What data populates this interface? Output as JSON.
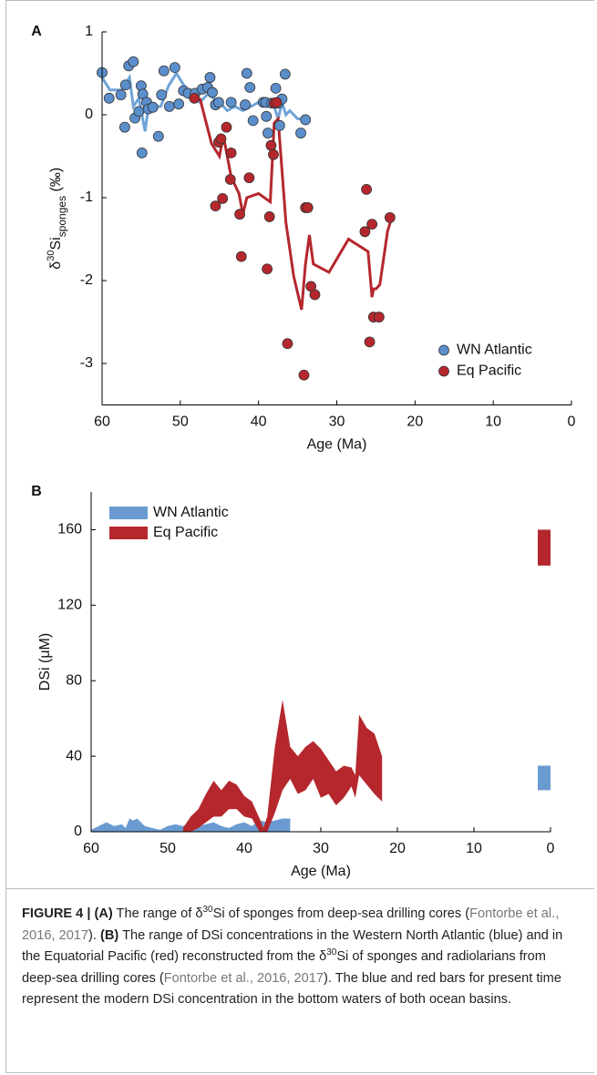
{
  "chart_data": [
    {
      "type": "scatter",
      "panel": "A",
      "y_label": [
        "δ",
        "30",
        "Si",
        "sponges",
        " (‰)"
      ],
      "x_label": "Age (Ma)",
      "xlim": [
        60,
        0
      ],
      "xticks": [
        60,
        50,
        40,
        30,
        20,
        10,
        0
      ],
      "ylim": [
        -3.5,
        1
      ],
      "yticks": [
        1,
        0,
        -1,
        -2,
        -3
      ],
      "legend": "lower right",
      "series": [
        {
          "name": "WN Atlantic",
          "color": "#5b8fcc",
          "line_color": "#6fa3d8",
          "x": [
            60,
            59.1,
            57.6,
            57.1,
            57,
            56.6,
            56,
            55.8,
            55.3,
            55,
            54.8,
            54.9,
            54.3,
            54.1,
            53.5,
            52.8,
            52.4,
            52.1,
            51.4,
            50.7,
            50.2,
            49.6,
            49,
            48.1,
            47.2,
            46.5,
            46.2,
            45.9,
            45.5,
            45.1,
            43.5,
            41.7,
            41.5,
            41.1,
            40.7,
            39.4,
            39.1,
            39,
            38.8,
            38.3,
            37.8,
            37.5,
            37.3,
            37,
            36.6,
            34.6,
            34
          ],
          "values": [
            0.51,
            0.2,
            0.24,
            -0.15,
            0.36,
            0.59,
            0.64,
            -0.04,
            0.04,
            0.35,
            0.25,
            -0.46,
            0.15,
            0.07,
            0.09,
            -0.26,
            0.24,
            0.53,
            0.1,
            0.57,
            0.13,
            0.29,
            0.26,
            0.26,
            0.31,
            0.33,
            0.45,
            0.27,
            0.12,
            0.15,
            0.15,
            0.12,
            0.5,
            0.33,
            -0.07,
            0.15,
            0.15,
            -0.02,
            -0.22,
            0.14,
            0.32,
            0.14,
            -0.13,
            0.19,
            0.49,
            -0.22,
            -0.06
          ],
          "line_x": [
            60,
            59,
            57.5,
            56.5,
            56,
            55.3,
            54.5,
            54,
            53.5,
            52.5,
            51.5,
            50.5,
            49.5,
            48.5,
            47.5,
            46.5,
            45,
            44,
            43,
            42,
            41,
            40,
            39,
            38,
            37.5,
            37,
            36.5,
            36,
            35,
            34
          ],
          "line_values": [
            0.45,
            0.3,
            0.3,
            0.45,
            0.1,
            0.2,
            -0.2,
            0.15,
            0.1,
            0.1,
            0.35,
            0.5,
            0.35,
            0.25,
            0.15,
            0.25,
            0.15,
            0.05,
            0.1,
            0.05,
            0.1,
            0.15,
            0.1,
            0.1,
            -0.05,
            0.15,
            0,
            0.05,
            -0.05,
            -0.05
          ]
        },
        {
          "name": "Eq Pacific",
          "color": "#b5272d",
          "line_color": "#b5272d",
          "x": [
            48.2,
            45.5,
            45.1,
            44.8,
            44.6,
            44.1,
            43.6,
            43.5,
            42.4,
            42.2,
            41.2,
            38.9,
            38.6,
            38.4,
            38.1,
            38,
            37.7,
            36.3,
            34.2,
            34,
            33.7,
            33.3,
            32.8,
            26.2,
            26.4,
            25.8,
            25.5,
            25.3,
            24.6,
            23.2
          ],
          "values": [
            0.2,
            -1.1,
            -0.33,
            -0.29,
            -1.01,
            -0.15,
            -0.78,
            -0.46,
            -1.2,
            -1.71,
            -0.76,
            -1.86,
            -1.23,
            -0.37,
            -0.48,
            0.14,
            0.15,
            -2.76,
            -3.14,
            -1.12,
            -1.12,
            -2.07,
            -2.17,
            -0.9,
            -1.41,
            -2.74,
            -1.32,
            -2.44,
            -2.44,
            -1.24
          ],
          "line_x": [
            47.5,
            46,
            45,
            44.5,
            43.5,
            42.5,
            42,
            41.5,
            40,
            38.5,
            38,
            37.5,
            36.5,
            35.5,
            34.5,
            34,
            33.5,
            33,
            31,
            28.5,
            26,
            25.5,
            25.3,
            25,
            24.5,
            23.5,
            23
          ],
          "line_values": [
            0.2,
            -0.35,
            -0.5,
            -0.25,
            -0.75,
            -0.95,
            -1.2,
            -1,
            -0.95,
            -1.05,
            -0.1,
            -0.05,
            -1.3,
            -1.95,
            -2.35,
            -1.8,
            -1.45,
            -1.8,
            -1.9,
            -1.5,
            -1.65,
            -2.2,
            -2.1,
            -2.1,
            -2.05,
            -1.4,
            -1.25
          ]
        }
      ]
    },
    {
      "type": "area",
      "panel": "B",
      "y_label": "DSi (μM)",
      "x_label": "Age (Ma)",
      "xlim": [
        60,
        0
      ],
      "xticks": [
        60,
        50,
        40,
        30,
        20,
        10,
        0
      ],
      "ylim": [
        0,
        180
      ],
      "yticks": [
        0,
        40,
        80,
        120,
        160
      ],
      "legend": "upper left",
      "series": [
        {
          "name": "WN Atlantic",
          "color": "#6a9bd0",
          "x": [
            60,
            59,
            58,
            57,
            56,
            55.5,
            55,
            54.5,
            54,
            53,
            52,
            51,
            50,
            49,
            48,
            47,
            46,
            45,
            44,
            43,
            42,
            41,
            40,
            39,
            38,
            37,
            36,
            35,
            34
          ],
          "lower": [
            0,
            0,
            0,
            0,
            0,
            0,
            0,
            0,
            0,
            0,
            0,
            0,
            0,
            0,
            0,
            0,
            0,
            0,
            0,
            0,
            0,
            0,
            0,
            0,
            0,
            0,
            0,
            0,
            0
          ],
          "upper": [
            1,
            3,
            5,
            3,
            4,
            2,
            7,
            6,
            7,
            3,
            2,
            1,
            3,
            4,
            3,
            5,
            3,
            4,
            5,
            3,
            2,
            4,
            5,
            3,
            6,
            5,
            6,
            7,
            7
          ],
          "present": [
            22,
            35
          ]
        },
        {
          "name": "Eq Pacific",
          "color": "#b5272d",
          "x": [
            48,
            47,
            46,
            45,
            44,
            43,
            42,
            41,
            40,
            39,
            38,
            37.5,
            37,
            36,
            35,
            34,
            33,
            32,
            31,
            30,
            29,
            28,
            27,
            26,
            25.5,
            25,
            24,
            23,
            22
          ],
          "lower": [
            0,
            0,
            2,
            5,
            8,
            8,
            12,
            12,
            8,
            7,
            0,
            0,
            0,
            10,
            22,
            28,
            20,
            22,
            28,
            18,
            20,
            14,
            18,
            24,
            18,
            30,
            25,
            20,
            16
          ],
          "upper": [
            2,
            8,
            12,
            20,
            27,
            22,
            27,
            25,
            19,
            16,
            7,
            2,
            8,
            45,
            70,
            45,
            40,
            45,
            48,
            44,
            38,
            32,
            35,
            34,
            30,
            62,
            55,
            52,
            40
          ],
          "present": [
            141,
            160
          ]
        }
      ]
    }
  ],
  "caption": [
    {
      "t": "FIGURE 4 | (A)",
      "style": "bold"
    },
    {
      "t": " The range of δ"
    },
    {
      "t": "30",
      "style": "sup"
    },
    {
      "t": "Si of sponges from deep-sea drilling cores ("
    },
    {
      "t": "Fontorbe et al., 2016, 2017",
      "style": "link"
    },
    {
      "t": "). "
    },
    {
      "t": "(B)",
      "style": "bold"
    },
    {
      "t": " The range of DSi concentrations in the Western North Atlantic (blue) and in the Equatorial Pacific (red) reconstructed from the δ"
    },
    {
      "t": "30",
      "style": "sup"
    },
    {
      "t": "Si of sponges and radiolarians from deep-sea drilling cores ("
    },
    {
      "t": "Fontorbe et al., 2016, 2017",
      "style": "link"
    },
    {
      "t": "). The blue and red bars for present time represent the modern DSi concentration in the bottom waters of both ocean basins."
    }
  ]
}
